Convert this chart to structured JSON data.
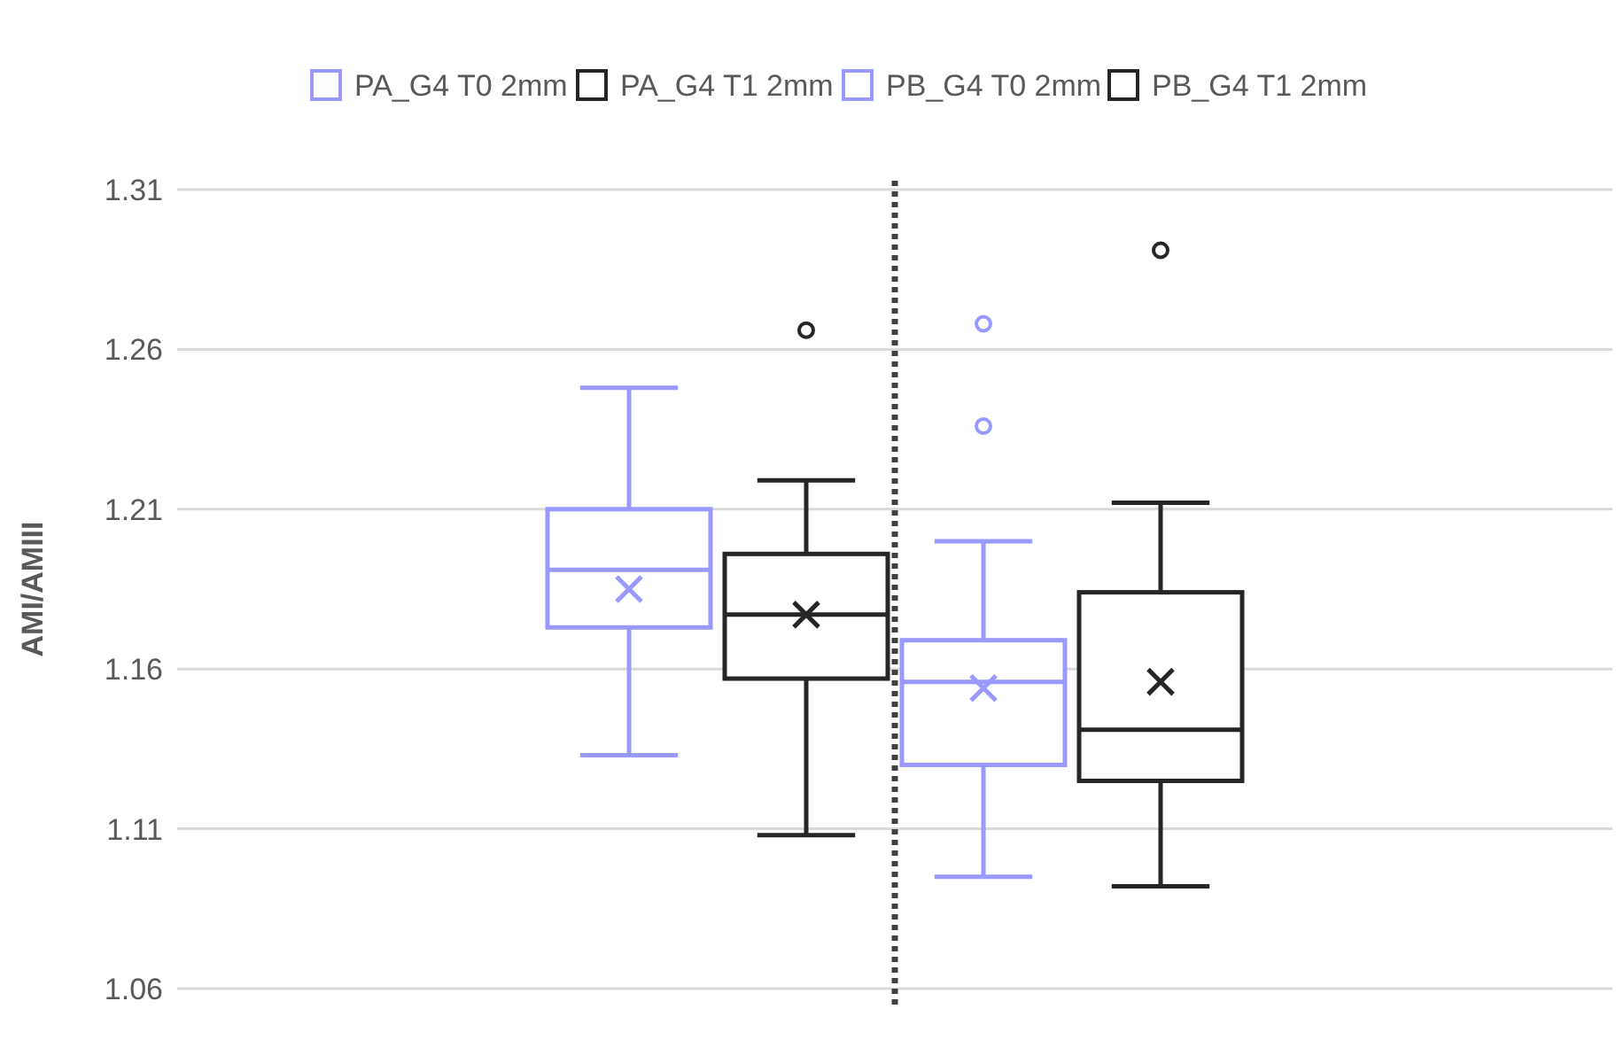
{
  "chart_data": {
    "type": "box",
    "ylabel": "AMI/AMIII",
    "categories": [
      null,
      null
    ],
    "ylim": [
      1.06,
      1.31
    ],
    "yticks": [
      1.06,
      1.11,
      1.16,
      1.21,
      1.26,
      1.31
    ],
    "grid": "y",
    "legend": "top",
    "tick_labels": "y",
    "series": [
      {
        "name": "PA_G4 T0 2mm",
        "color": "#9999ff",
        "boxes": [
          {
            "low": 1.133,
            "q1": 1.173,
            "median": 1.191,
            "q3": 1.21,
            "high": 1.248,
            "mean": 1.185
          },
          null
        ]
      },
      {
        "name": "PA_G4 T1 2mm",
        "color": "#262626",
        "boxes": [
          {
            "low": 1.108,
            "q1": 1.157,
            "median": 1.177,
            "q3": 1.196,
            "high": 1.219,
            "mean": 1.177,
            "outliers": [
              1.266
            ]
          },
          null
        ]
      },
      {
        "name": "PB_G4 T0 2mm",
        "color": "#9999ff",
        "boxes": [
          null,
          {
            "low": 1.095,
            "q1": 1.13,
            "median": 1.156,
            "q3": 1.169,
            "high": 1.2,
            "mean": 1.154,
            "outliers": [
              1.236,
              1.268
            ]
          }
        ]
      },
      {
        "name": "PB_G4 T1 2mm",
        "color": "#262626",
        "boxes": [
          null,
          {
            "low": 1.092,
            "q1": 1.125,
            "median": 1.141,
            "q3": 1.184,
            "high": 1.212,
            "mean": 1.156,
            "outliers": [
              1.291
            ]
          }
        ]
      }
    ]
  }
}
